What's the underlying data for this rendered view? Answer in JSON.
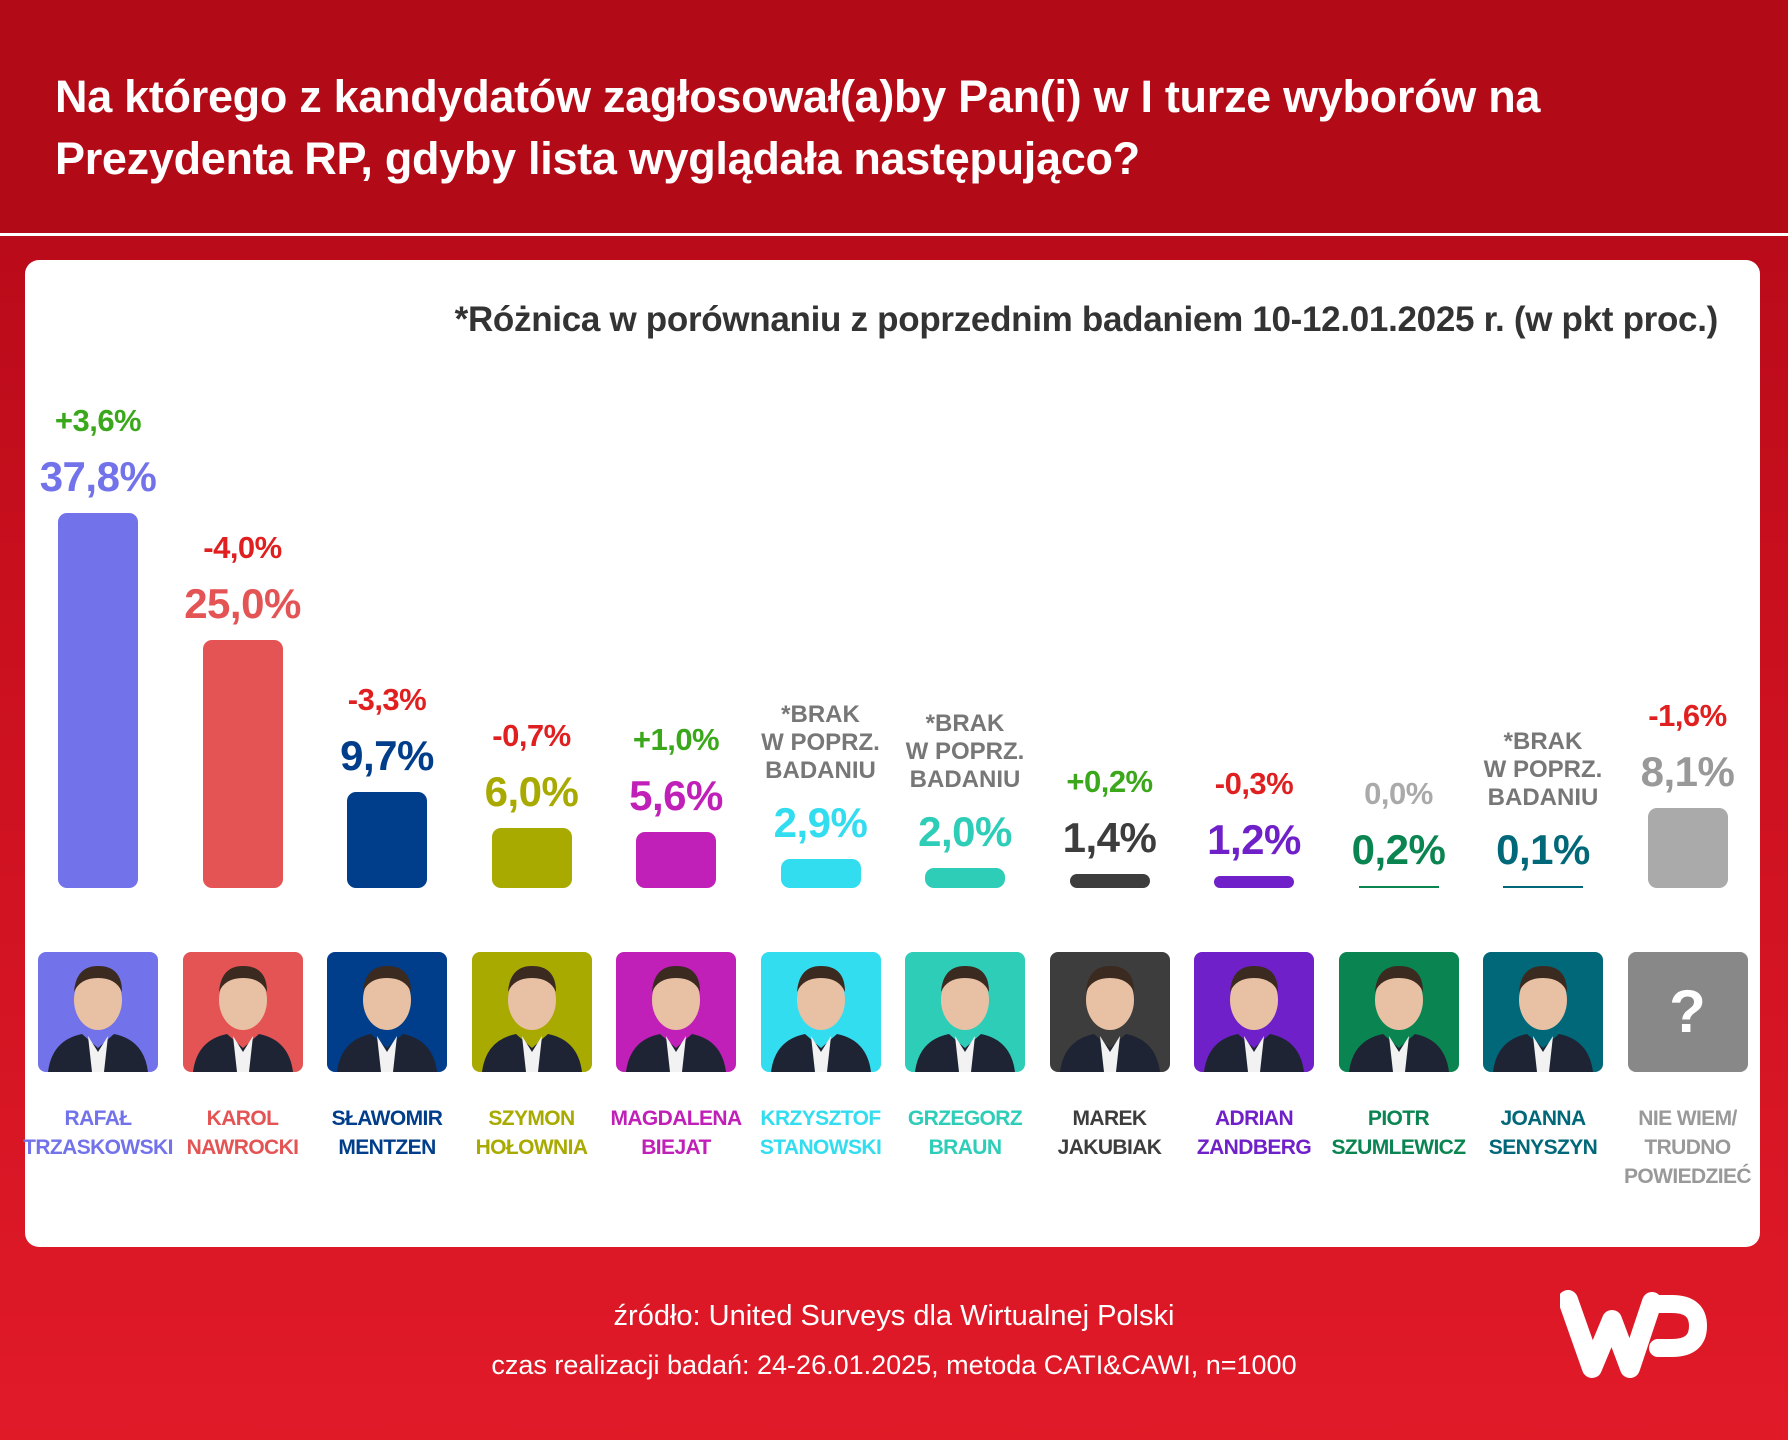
{
  "header": {
    "title": "Na którego z kandydatów zagłosował(a)by Pan(i) w I turze wyborów na Prezydenta RP, gdyby lista wyglądała następująco?"
  },
  "note": "*Różnica w porównaniu z poprzednim badaniem 10-12.01.2025 r. (w pkt proc.)",
  "chart_data": {
    "type": "bar",
    "title": "Na którego z kandydatów zagłosował(a)by Pan(i) w I turze wyborów na Prezydenta RP, gdyby lista wyglądała następująco?",
    "categories": [
      "RAFAŁ\nTRZASKOWSKI",
      "KAROL\nNAWROCKI",
      "SŁAWOMIR\nMENTZEN",
      "SZYMON\nHOŁOWNIA",
      "MAGDALENA\nBIEJAT",
      "KRZYSZTOF\nSTANOWSKI",
      "GRZEGORZ\nBRAUN",
      "MAREK\nJAKUBIAK",
      "ADRIAN\nZANDBERG",
      "PIOTR\nSZUMLEWICZ",
      "JOANNA\nSENYSZYN",
      "NIE WIEM/\nTRUDNO\nPOWIEDZIEĆ"
    ],
    "values": [
      37.8,
      25.0,
      9.7,
      6.0,
      5.6,
      2.9,
      2.0,
      1.4,
      1.2,
      0.2,
      0.1,
      8.1
    ],
    "value_labels": [
      "37,8%",
      "25,0%",
      "9,7%",
      "6,0%",
      "5,6%",
      "2,9%",
      "2,0%",
      "1,4%",
      "1,2%",
      "0,2%",
      "0,1%",
      "8,1%"
    ],
    "change_labels": [
      "+3,6%",
      "-4,0%",
      "-3,3%",
      "-0,7%",
      "+1,0%",
      "*BRAK\nW POPRZ.\nBADANIU",
      "*BRAK\nW POPRZ.\nBADANIU",
      "+0,2%",
      "-0,3%",
      "0,0%",
      "*BRAK\nW POPRZ.\nBADANIU",
      "-1,6%"
    ],
    "change_types": [
      "up",
      "down",
      "down",
      "down",
      "up",
      "none",
      "none",
      "up",
      "down",
      "zero",
      "none",
      "down"
    ],
    "colors": [
      "#7272ea",
      "#e45454",
      "#003d8a",
      "#a8aa00",
      "#c020b8",
      "#33ddf0",
      "#2ecdb8",
      "#3d3d3d",
      "#7020c8",
      "#0a8450",
      "#006878",
      "#aaaaaa"
    ],
    "label_colors": [
      "#7272ea",
      "#e45454",
      "#003d8a",
      "#a8aa00",
      "#c020b8",
      "#33ddf0",
      "#2ecdb8",
      "#3d3d3d",
      "#7020c8",
      "#0a8450",
      "#006878",
      "#999999"
    ],
    "change_colors": {
      "up": "#3aa81a",
      "down": "#e02020",
      "zero": "#aaaaaa",
      "none": "#777777"
    },
    "ylim": [
      0,
      37.8
    ],
    "xlabel": "",
    "ylabel": ""
  },
  "unknown_photo_mark": "?",
  "footer": {
    "source": "źródło: United Surveys dla Wirtualnej Polski",
    "method": "czas realizacji badań: 24-26.01.2025, metoda CATI&CAWI, n=1000"
  },
  "logo": {
    "text": "WP"
  }
}
